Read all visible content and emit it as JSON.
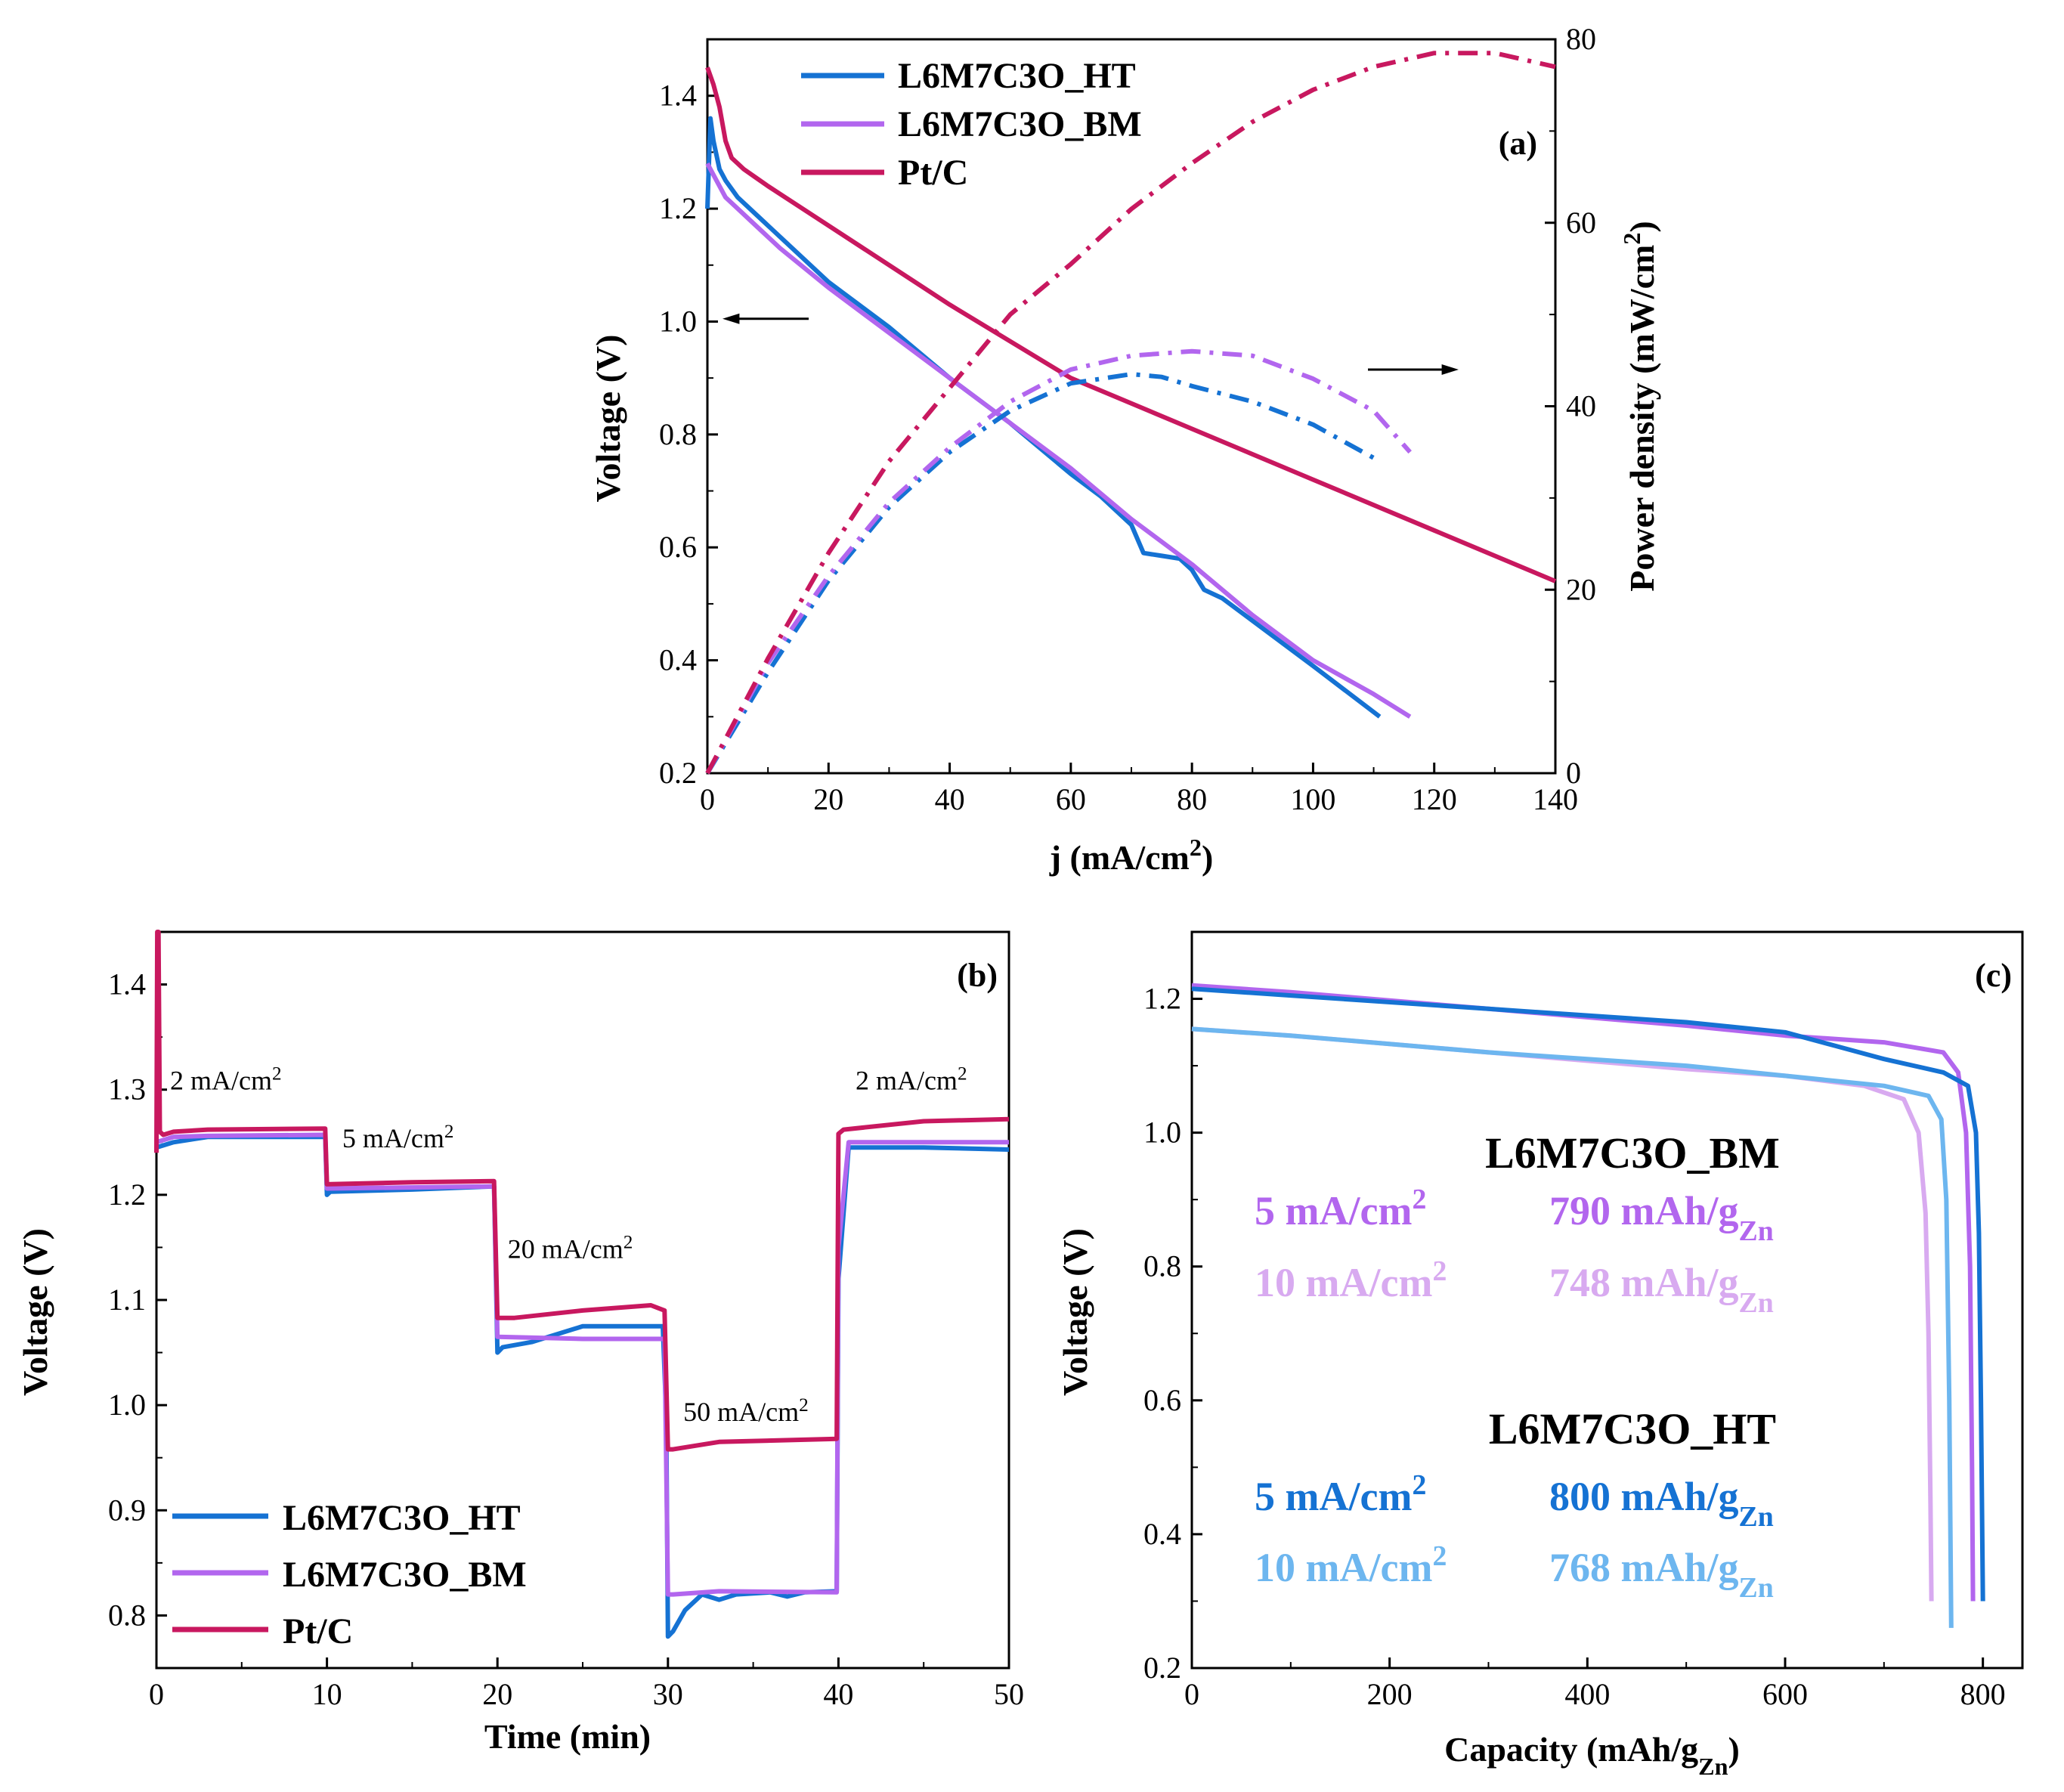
{
  "colors": {
    "ht": "#1572d3",
    "bm": "#b266ee",
    "pt": "#c8185f",
    "ht10": "#6db6ef",
    "bm10": "#d8aaf0"
  },
  "chart_data": [
    {
      "panel": "(a)",
      "type": "line",
      "xlabel": "j (mA/cm²)",
      "ylabel": "Voltage (V)",
      "y2label": "Power density (mW/cm²)",
      "xlim": [
        0,
        140
      ],
      "ylim": [
        0.2,
        1.5
      ],
      "y2lim": [
        0,
        80
      ],
      "xticks": [
        "0",
        "20",
        "40",
        "60",
        "80",
        "100",
        "120",
        "140"
      ],
      "yticks": [
        "0.2",
        "0.4",
        "0.6",
        "0.8",
        "1.0",
        "1.2",
        "1.4"
      ],
      "y2ticks": [
        "0",
        "20",
        "40",
        "60",
        "80"
      ],
      "legend": [
        "L6M7C3O_HT",
        "L6M7C3O_BM",
        "Pt/C"
      ],
      "legend_position": "top-left",
      "series": [
        {
          "name": "L6M7C3O_HT",
          "axis": "left",
          "style": "solid",
          "color": "#1572d3",
          "x": [
            0,
            0.5,
            1,
            2,
            3,
            5,
            8,
            12,
            20,
            30,
            40,
            50,
            60,
            65,
            70,
            72,
            75,
            78,
            80,
            82,
            85,
            90,
            100,
            111
          ],
          "y": [
            1.2,
            1.36,
            1.32,
            1.27,
            1.25,
            1.22,
            1.19,
            1.15,
            1.07,
            0.99,
            0.9,
            0.82,
            0.73,
            0.69,
            0.64,
            0.59,
            0.585,
            0.58,
            0.56,
            0.525,
            0.51,
            0.47,
            0.39,
            0.3
          ]
        },
        {
          "name": "L6M7C3O_BM",
          "axis": "left",
          "style": "solid",
          "color": "#b266ee",
          "x": [
            0,
            1,
            2,
            3,
            5,
            8,
            12,
            20,
            30,
            40,
            50,
            60,
            70,
            80,
            90,
            100,
            110,
            116
          ],
          "y": [
            1.28,
            1.26,
            1.24,
            1.22,
            1.2,
            1.17,
            1.13,
            1.06,
            0.98,
            0.9,
            0.82,
            0.74,
            0.65,
            0.57,
            0.48,
            0.4,
            0.34,
            0.3
          ]
        },
        {
          "name": "Pt/C",
          "axis": "left",
          "style": "solid",
          "color": "#c8185f",
          "x": [
            0,
            1,
            2,
            3,
            4,
            5,
            6,
            8,
            10,
            20,
            40,
            60,
            80,
            100,
            120,
            140
          ],
          "y": [
            1.45,
            1.42,
            1.38,
            1.32,
            1.29,
            1.28,
            1.27,
            1.255,
            1.24,
            1.17,
            1.03,
            0.9,
            0.81,
            0.72,
            0.63,
            0.54
          ]
        },
        {
          "name": "L6M7C3O_HT",
          "axis": "right",
          "style": "dashdot",
          "color": "#1572d3",
          "x": [
            0,
            10,
            20,
            30,
            40,
            50,
            60,
            70,
            75,
            80,
            90,
            100,
            111
          ],
          "y": [
            0,
            11,
            21,
            29,
            35,
            39.5,
            42.5,
            43.5,
            43.2,
            42.2,
            40.5,
            38,
            34
          ]
        },
        {
          "name": "L6M7C3O_BM",
          "axis": "right",
          "style": "dashdot",
          "color": "#b266ee",
          "x": [
            0,
            10,
            20,
            30,
            40,
            50,
            60,
            70,
            80,
            90,
            100,
            110,
            116
          ],
          "y": [
            0,
            12,
            21.5,
            29.5,
            35.5,
            40.5,
            44,
            45.5,
            46,
            45.5,
            43,
            39.5,
            35
          ]
        },
        {
          "name": "Pt/C",
          "axis": "right",
          "style": "dashdot",
          "color": "#c8185f",
          "x": [
            0,
            10,
            20,
            30,
            40,
            50,
            60,
            70,
            80,
            90,
            100,
            110,
            120,
            130,
            140
          ],
          "y": [
            0,
            12.5,
            24,
            34,
            42,
            50,
            55.5,
            61.5,
            66.5,
            71,
            74.5,
            77,
            78.5,
            78.5,
            77
          ]
        }
      ],
      "annotations": {
        "left_arrow": "←",
        "right_arrow": "→"
      }
    },
    {
      "panel": "(b)",
      "type": "line",
      "xlabel": "Time (min)",
      "ylabel": "Voltage (V)",
      "xlim": [
        0,
        50
      ],
      "ylim": [
        0.75,
        1.45
      ],
      "xticks": [
        "0",
        "10",
        "20",
        "30",
        "40",
        "50"
      ],
      "yticks": [
        "0.8",
        "0.9",
        "1.0",
        "1.1",
        "1.2",
        "1.3",
        "1.4"
      ],
      "legend": [
        "L6M7C3O_HT",
        "L6M7C3O_BM",
        "Pt/C"
      ],
      "legend_position": "bottom-left",
      "current_labels": [
        {
          "text": "2 mA/cm",
          "sup": "2",
          "x": 0.8,
          "y": 1.3
        },
        {
          "text": "5 mA/cm",
          "sup": "2",
          "x": 10.9,
          "y": 1.245
        },
        {
          "text": "20 mA/cm",
          "sup": "2",
          "x": 20.6,
          "y": 1.14
        },
        {
          "text": "50 mA/cm",
          "sup": "2",
          "x": 30.9,
          "y": 0.985
        },
        {
          "text": "2 mA/cm",
          "sup": "2",
          "x": 41.0,
          "y": 1.3
        }
      ],
      "series": [
        {
          "name": "L6M7C3O_HT",
          "color": "#1572d3",
          "x": [
            0,
            1,
            3,
            9.9,
            10,
            10.2,
            15,
            19.8,
            20,
            20.3,
            22,
            25,
            29.7,
            29.9,
            30,
            30.3,
            31,
            32,
            33,
            34,
            36,
            37,
            38,
            39.9,
            40,
            40.6,
            45,
            50
          ],
          "y": [
            1.245,
            1.25,
            1.255,
            1.255,
            1.2,
            1.203,
            1.205,
            1.208,
            1.05,
            1.055,
            1.06,
            1.075,
            1.075,
            0.99,
            0.78,
            0.785,
            0.805,
            0.82,
            0.815,
            0.82,
            0.822,
            0.818,
            0.822,
            0.823,
            1.12,
            1.245,
            1.245,
            1.243
          ]
        },
        {
          "name": "L6M7C3O_BM",
          "color": "#b266ee",
          "x": [
            0,
            1,
            3,
            9.9,
            10,
            15,
            19.8,
            20,
            25,
            29.8,
            30,
            30.3,
            33,
            39.9,
            40,
            40.6,
            45,
            50
          ],
          "y": [
            1.25,
            1.255,
            1.256,
            1.257,
            1.206,
            1.207,
            1.208,
            1.065,
            1.063,
            1.063,
            0.82,
            0.82,
            0.823,
            0.822,
            1.15,
            1.25,
            1.25,
            1.25
          ]
        },
        {
          "name": "Pt/C",
          "color": "#c8185f",
          "x": [
            0,
            0.05,
            0.12,
            0.2,
            0.4,
            1,
            3,
            9.9,
            10,
            15,
            19.8,
            20,
            20.5,
            21,
            25,
            29,
            29.8,
            30,
            30.3,
            33,
            39.9,
            40,
            40.3,
            45,
            50
          ],
          "y": [
            1.24,
            1.45,
            1.45,
            1.26,
            1.257,
            1.26,
            1.262,
            1.263,
            1.21,
            1.212,
            1.213,
            1.083,
            1.083,
            1.083,
            1.09,
            1.095,
            1.09,
            0.958,
            0.958,
            0.965,
            0.968,
            1.258,
            1.262,
            1.27,
            1.272
          ]
        }
      ]
    },
    {
      "panel": "(c)",
      "type": "line",
      "xlabel": "Capacity (mAh/g",
      "xlabel_sub": "Zn",
      "xlabel_end": ")",
      "ylabel": "Voltage (V)",
      "xlim": [
        0,
        840
      ],
      "ylim": [
        0.2,
        1.3
      ],
      "xticks": [
        "0",
        "200",
        "400",
        "600",
        "800"
      ],
      "yticks": [
        "0.2",
        "0.4",
        "0.6",
        "0.8",
        "1.0",
        "1.2"
      ],
      "groups": [
        {
          "title": "L6M7C3O_BM",
          "rows": [
            {
              "rate": "5 mA/cm",
              "rate_sup": "2",
              "cap": "790 mAh/g",
              "cap_sub": "Zn",
              "color": "#b266ee"
            },
            {
              "rate": "10 mA/cm",
              "rate_sup": "2",
              "cap": "748 mAh/g",
              "cap_sub": "Zn",
              "color": "#d8aaf0"
            }
          ]
        },
        {
          "title": "L6M7C3O_HT",
          "rows": [
            {
              "rate": "5 mA/cm",
              "rate_sup": "2",
              "cap": "800 mAh/g",
              "cap_sub": "Zn",
              "color": "#1572d3"
            },
            {
              "rate": "10 mA/cm",
              "rate_sup": "2",
              "cap": "768 mAh/g",
              "cap_sub": "Zn",
              "color": "#6db6ef"
            }
          ]
        }
      ],
      "series": [
        {
          "name": "L6M7C3O_BM 5 mA/cm2",
          "color": "#b266ee",
          "x": [
            0,
            100,
            300,
            500,
            600,
            700,
            760,
            775,
            783,
            787,
            789,
            790
          ],
          "y": [
            1.22,
            1.21,
            1.185,
            1.16,
            1.145,
            1.135,
            1.12,
            1.09,
            1.0,
            0.8,
            0.5,
            0.3
          ]
        },
        {
          "name": "L6M7C3O_BM 10 mA/cm2",
          "color": "#d8aaf0",
          "x": [
            0,
            100,
            300,
            500,
            600,
            680,
            720,
            735,
            742,
            745,
            747,
            748
          ],
          "y": [
            1.155,
            1.145,
            1.12,
            1.095,
            1.085,
            1.07,
            1.05,
            1.0,
            0.88,
            0.7,
            0.45,
            0.3
          ]
        },
        {
          "name": "L6M7C3O_HT 5 mA/cm2",
          "color": "#1572d3",
          "x": [
            0,
            100,
            300,
            500,
            600,
            650,
            700,
            760,
            785,
            793,
            796,
            798,
            800
          ],
          "y": [
            1.215,
            1.205,
            1.185,
            1.165,
            1.15,
            1.13,
            1.11,
            1.09,
            1.07,
            1.0,
            0.85,
            0.6,
            0.3
          ]
        },
        {
          "name": "L6M7C3O_HT 10 mA/cm2",
          "color": "#6db6ef",
          "x": [
            0,
            100,
            300,
            500,
            600,
            700,
            745,
            758,
            763,
            766,
            768
          ],
          "y": [
            1.155,
            1.145,
            1.12,
            1.1,
            1.085,
            1.07,
            1.055,
            1.02,
            0.9,
            0.6,
            0.26
          ]
        }
      ]
    }
  ]
}
